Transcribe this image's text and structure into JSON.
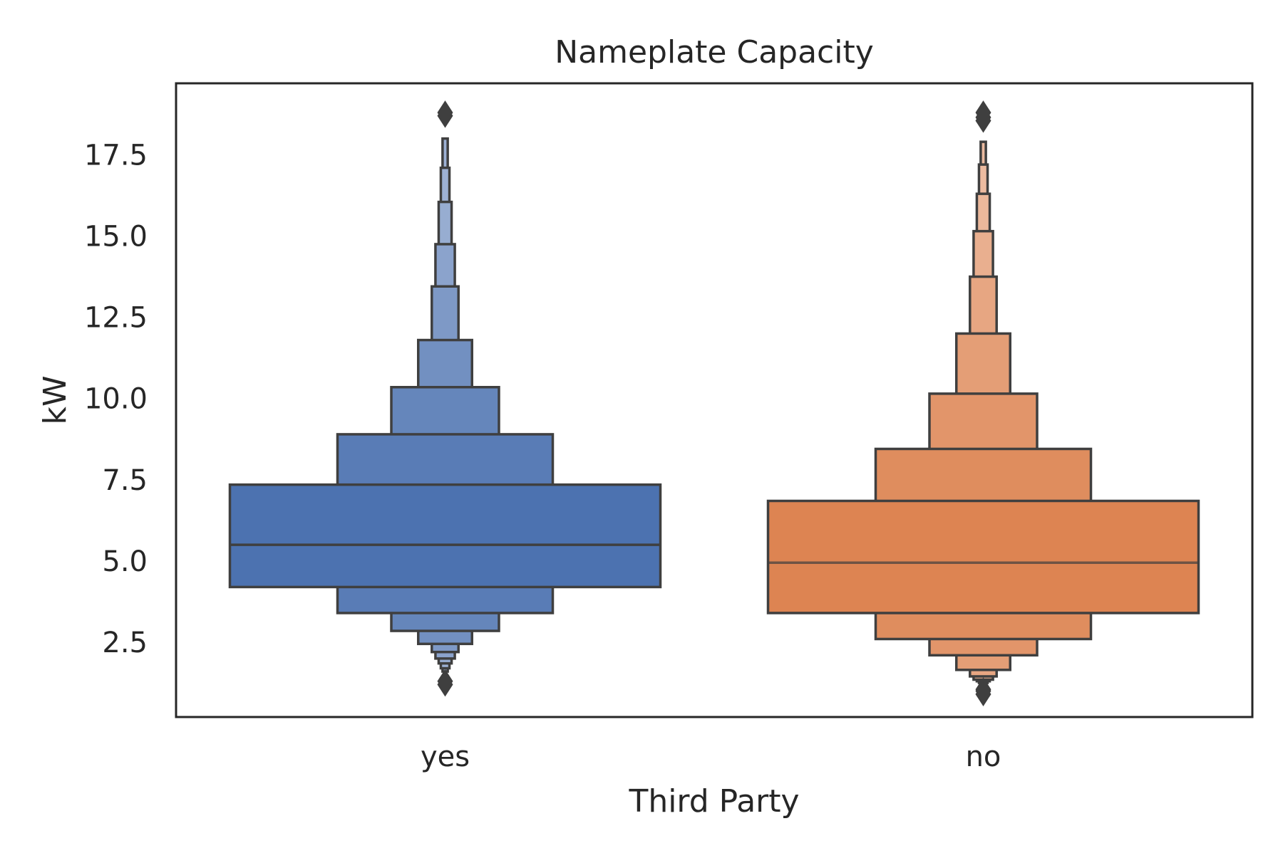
{
  "chart_data": {
    "type": "boxen",
    "title": "Nameplate Capacity",
    "xlabel": "Third Party",
    "ylabel": "kW",
    "ylim": [
      0.2,
      19.7
    ],
    "yticks": [
      "2.5",
      "5.0",
      "7.5",
      "10.0",
      "12.5",
      "15.0",
      "17.5"
    ],
    "ytick_values": [
      2.5,
      5.0,
      7.5,
      10.0,
      12.5,
      15.0,
      17.5
    ],
    "grid": false,
    "categories": [
      "yes",
      "no"
    ],
    "series": [
      {
        "category": "yes",
        "color": "#4c72b0",
        "median": 5.5,
        "levels": [
          {
            "low": 4.2,
            "high": 7.35
          },
          {
            "low": 3.4,
            "high": 8.9
          },
          {
            "low": 2.85,
            "high": 10.35
          },
          {
            "low": 2.45,
            "high": 11.8
          },
          {
            "low": 2.2,
            "high": 13.45
          },
          {
            "low": 2.0,
            "high": 14.75
          },
          {
            "low": 1.85,
            "high": 16.05
          },
          {
            "low": 1.7,
            "high": 17.1
          },
          {
            "low": 1.6,
            "high": 18.0
          }
        ],
        "outliers": [
          18.8,
          18.7,
          1.3,
          1.2
        ]
      },
      {
        "category": "no",
        "color": "#dd8452",
        "median": 4.95,
        "levels": [
          {
            "low": 3.4,
            "high": 6.85
          },
          {
            "low": 2.6,
            "high": 8.45
          },
          {
            "low": 2.1,
            "high": 10.15
          },
          {
            "low": 1.65,
            "high": 12.0
          },
          {
            "low": 1.45,
            "high": 13.75
          },
          {
            "low": 1.35,
            "high": 15.15
          },
          {
            "low": 1.3,
            "high": 16.3
          },
          {
            "low": 1.25,
            "high": 17.2
          },
          {
            "low": 1.2,
            "high": 17.9
          }
        ],
        "outliers": [
          18.8,
          18.65,
          18.55,
          1.05,
          1.0,
          0.9
        ]
      }
    ]
  }
}
